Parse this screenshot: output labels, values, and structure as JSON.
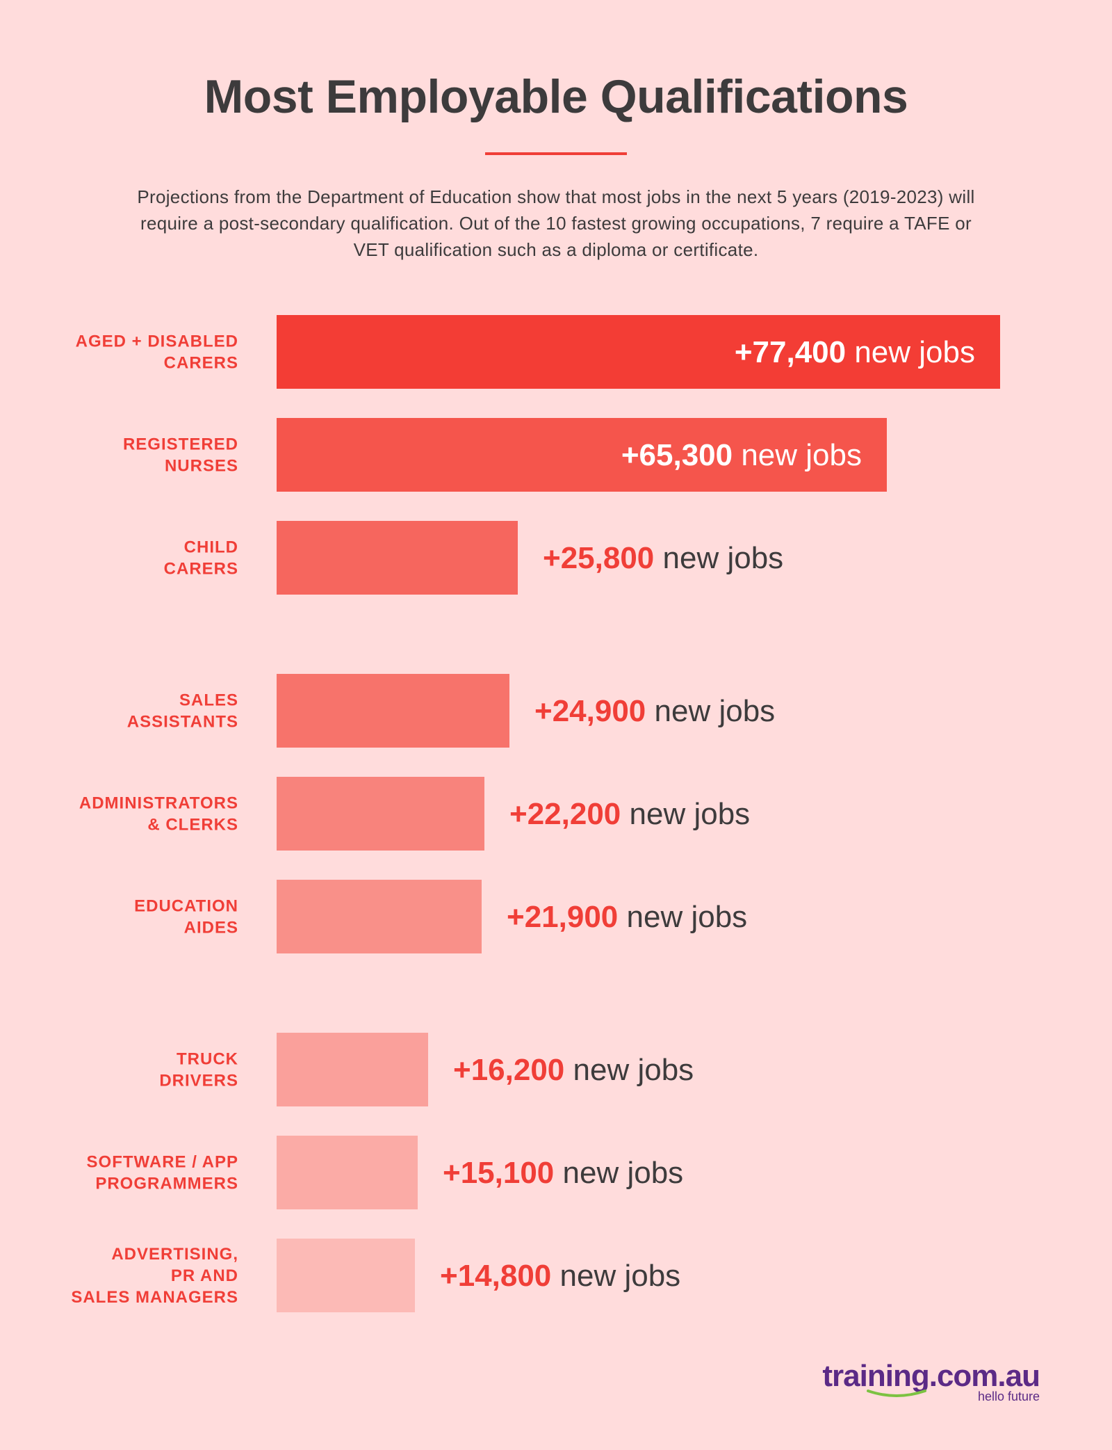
{
  "title": "Most Employable Qualifications",
  "subtitle": "Projections from the Department of Education show that most jobs in the next 5 years (2019-2023) will require a post-secondary qualification. Out of the 10 fastest growing occupations, 7 require a TAFE or VET qualification such as a diploma or certificate.",
  "value_suffix": "new jobs",
  "colors": {
    "background": "#ffdcdc",
    "accent": "#f03e37",
    "text": "#3d3b3c",
    "bars": [
      "#f33d35",
      "#f5554c",
      "#f6665e",
      "#f7736b",
      "#f8837c",
      "#f99089",
      "#faa09b",
      "#fbaba6",
      "#fcbab6"
    ]
  },
  "chart_data": {
    "type": "bar",
    "orientation": "horizontal",
    "categories": [
      [
        "AGED + DISABLED",
        "CARERS"
      ],
      [
        "REGISTERED",
        "NURSES"
      ],
      [
        "CHILD",
        "CARERS"
      ],
      [
        "SALES",
        "ASSISTANTS"
      ],
      [
        "ADMINISTRATORS",
        "& CLERKS"
      ],
      [
        "EDUCATION",
        "AIDES"
      ],
      [
        "TRUCK",
        "DRIVERS"
      ],
      [
        "SOFTWARE / APP",
        "PROGRAMMERS"
      ],
      [
        "ADVERTISING,",
        "PR AND",
        "SALES MANAGERS"
      ]
    ],
    "values": [
      77400,
      65300,
      25800,
      24900,
      22200,
      21900,
      16200,
      15100,
      14800
    ],
    "value_labels": [
      "+77,400",
      "+65,300",
      "+25,800",
      "+24,900",
      "+22,200",
      "+21,900",
      "+16,200",
      "+15,100",
      "+14,800"
    ],
    "groups": [
      3,
      3,
      3
    ],
    "xlim": [
      0,
      77400
    ],
    "grid": false,
    "legend": "none"
  },
  "logo": {
    "name": "training.com.au",
    "tagline": "hello future"
  }
}
